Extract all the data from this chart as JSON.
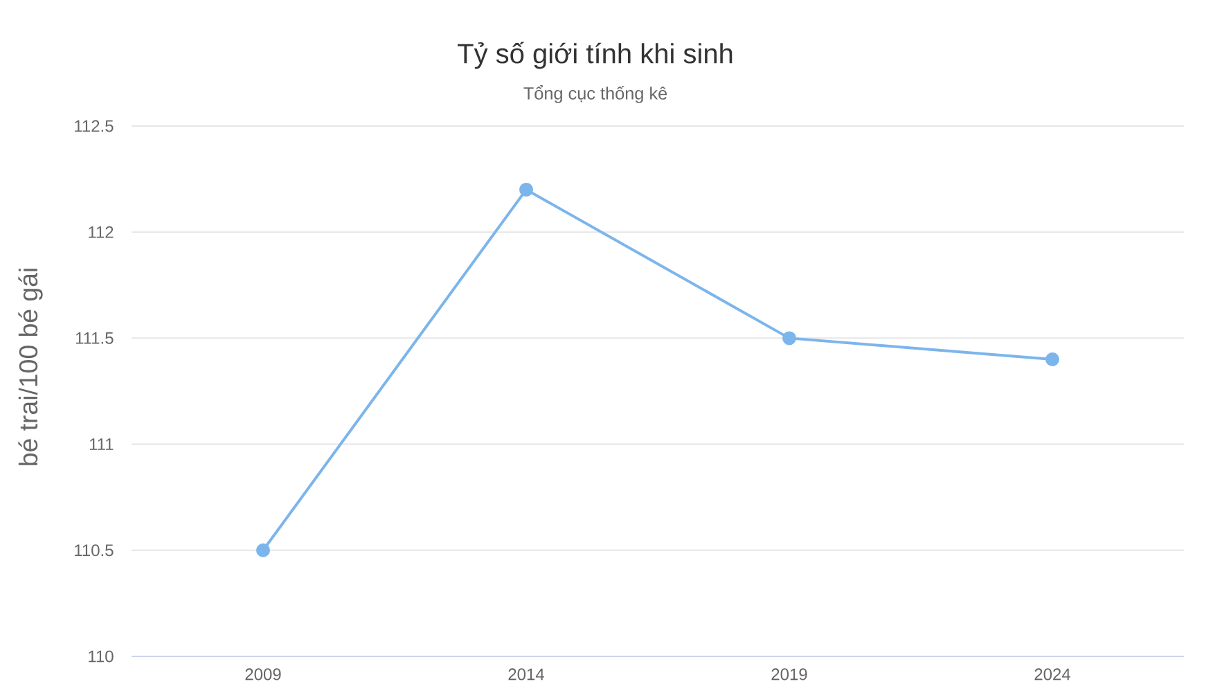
{
  "chart_data": {
    "type": "line",
    "title": "Tỷ số giới tính khi sinh",
    "subtitle": "Tổng cục thống kê",
    "ylabel": "bé trai/100 bé gái",
    "categories": [
      "2009",
      "2014",
      "2019",
      "2024"
    ],
    "series": [
      {
        "color": "#7cb5ec",
        "values": [
          110.5,
          112.2,
          111.5,
          111.4
        ]
      }
    ],
    "ylim": [
      110,
      112.5
    ],
    "yticks": [
      110,
      110.5,
      111,
      111.5,
      112,
      112.5
    ],
    "grid": "y",
    "marker": "circle"
  }
}
